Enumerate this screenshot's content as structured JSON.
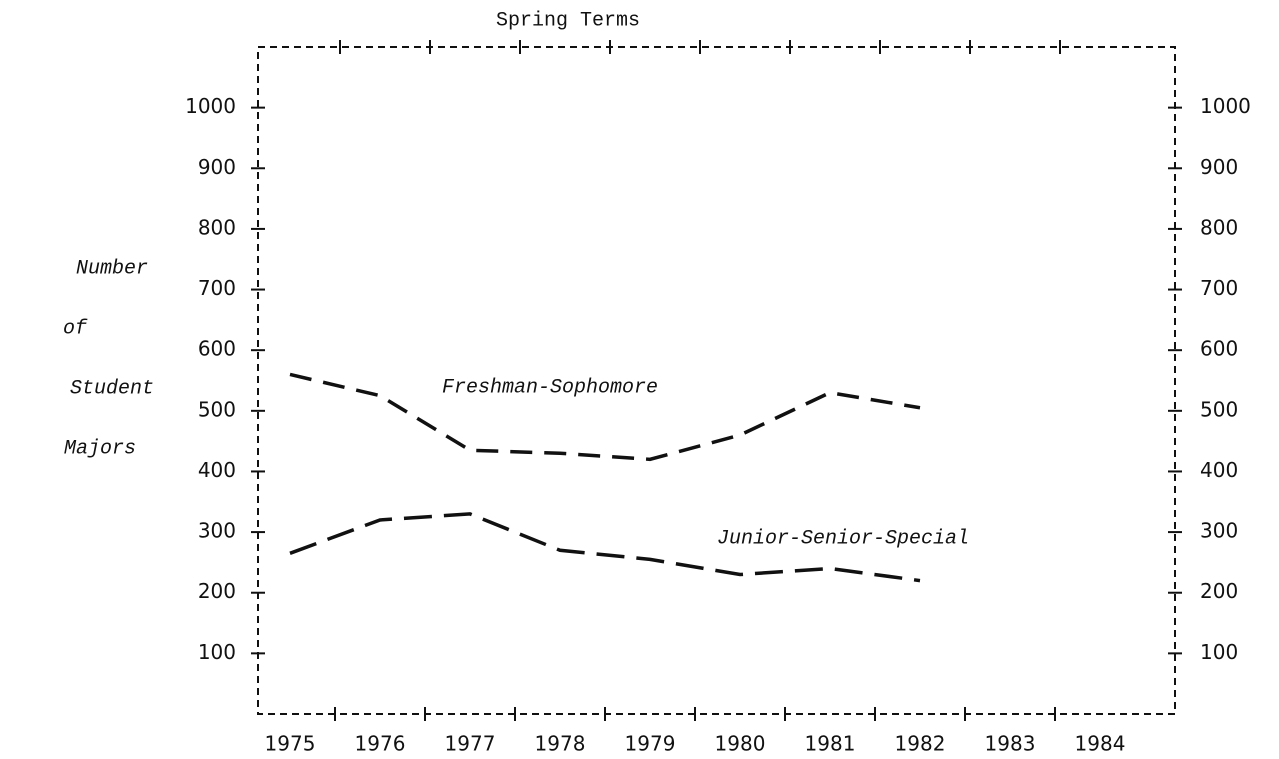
{
  "chart_data": {
    "type": "line",
    "title": "Spring Terms",
    "ylabel": [
      "Number",
      "of",
      "Student",
      "Majors"
    ],
    "categories": [
      "1975",
      "1976",
      "1977",
      "1978",
      "1979",
      "1980",
      "1981",
      "1982",
      "1983",
      "1984"
    ],
    "series": [
      {
        "name": "Freshman-Sophomore",
        "color": "#111111",
        "values": [
          560,
          525,
          435,
          430,
          420,
          460,
          530,
          505,
          null,
          null
        ]
      },
      {
        "name": "Junior-Senior-Special",
        "color": "#111111",
        "values": [
          265,
          320,
          330,
          270,
          255,
          230,
          240,
          220,
          null,
          null
        ]
      }
    ],
    "ylim": [
      0,
      1100
    ],
    "yticks": [
      100,
      200,
      300,
      400,
      500,
      600,
      700,
      800,
      900,
      1000
    ],
    "grid": false
  }
}
